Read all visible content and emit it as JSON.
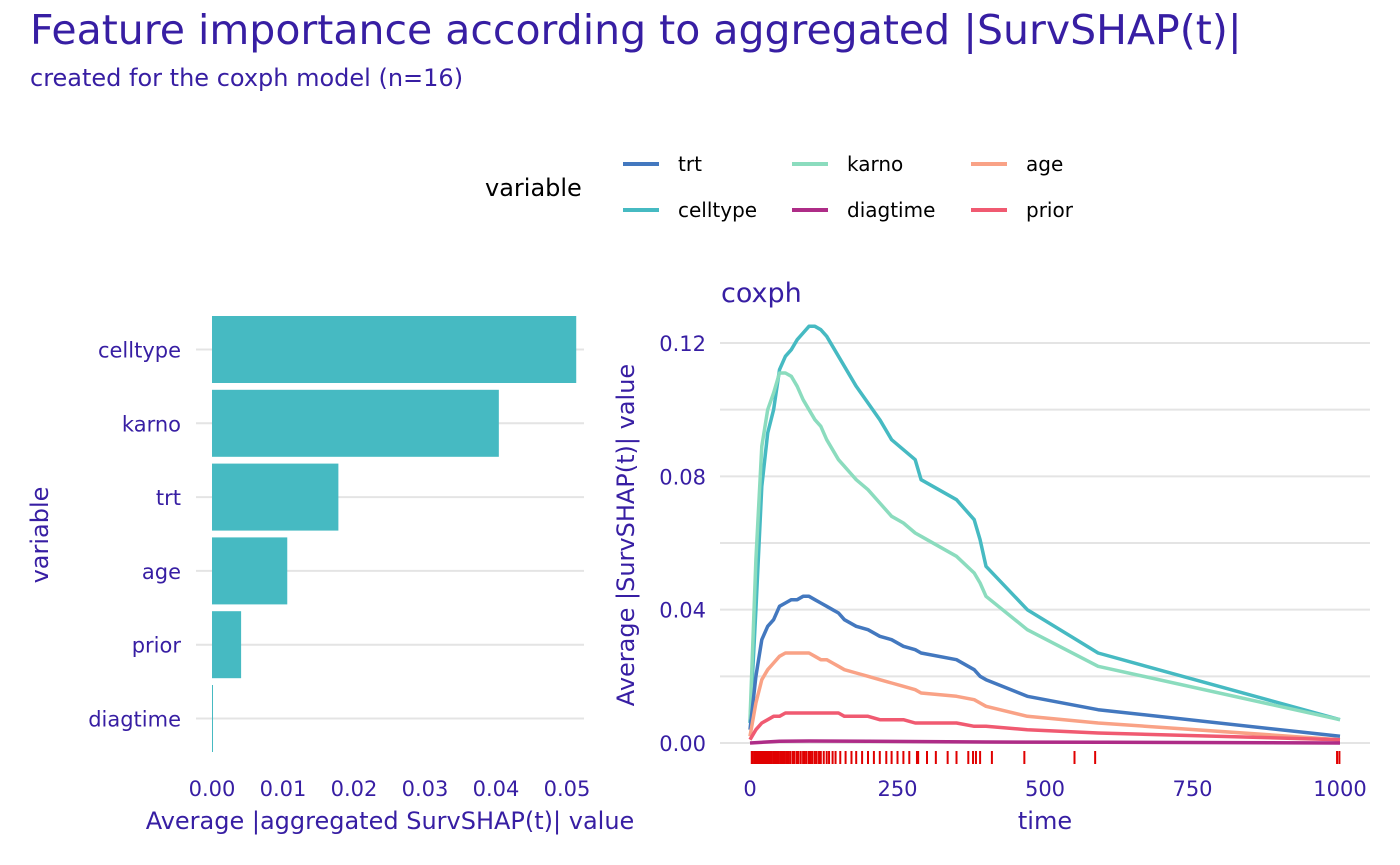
{
  "title": "Feature importance according to aggregated |SurvSHAP(t)|",
  "subtitle": "created for the coxph model (n=16)",
  "legend": {
    "title": "variable",
    "placement": "top",
    "entries": [
      {
        "label": "trt",
        "color": "#4378bf"
      },
      {
        "label": "celltype",
        "color": "#46bac2"
      },
      {
        "label": "karno",
        "color": "#8bdcbe"
      },
      {
        "label": "diagtime",
        "color": "#ae2c87"
      },
      {
        "label": "age",
        "color": "#f9a286"
      },
      {
        "label": "prior",
        "color": "#f05a71"
      }
    ]
  },
  "chart_data": [
    {
      "type": "bar",
      "orientation": "horizontal",
      "xlabel": "Average |aggregated SurvSHAP(t)| value",
      "ylabel": "variable",
      "xlim": [
        0,
        0.05
      ],
      "xticks": [
        "0.00",
        "0.01",
        "0.02",
        "0.03",
        "0.04",
        "0.05"
      ],
      "bar_color": "#46bac2",
      "categories": [
        "celltype",
        "karno",
        "trt",
        "age",
        "prior",
        "diagtime"
      ],
      "values": [
        0.0513,
        0.0404,
        0.0178,
        0.0106,
        0.0041,
        0.0001
      ]
    },
    {
      "type": "line",
      "title": "coxph",
      "xlabel": "time",
      "ylabel": "Average |SurvSHAP(t)| value",
      "xlim": [
        0,
        1000
      ],
      "ylim": [
        0,
        0.12
      ],
      "xticks": [
        "0",
        "250",
        "500",
        "750",
        "1000"
      ],
      "yticks": [
        "0.00",
        "0.04",
        "0.08",
        "0.12"
      ],
      "grid": true,
      "series": [
        {
          "name": "celltype",
          "color": "#46bac2",
          "x": [
            0,
            10,
            20,
            30,
            40,
            50,
            60,
            70,
            80,
            90,
            100,
            110,
            120,
            130,
            140,
            150,
            160,
            170,
            180,
            200,
            220,
            240,
            260,
            280,
            290,
            350,
            380,
            390,
            400,
            470,
            590,
            1000
          ],
          "y": [
            0.006,
            0.04,
            0.077,
            0.093,
            0.1,
            0.112,
            0.116,
            0.118,
            0.121,
            0.123,
            0.125,
            0.125,
            0.124,
            0.122,
            0.119,
            0.116,
            0.113,
            0.11,
            0.107,
            0.102,
            0.097,
            0.091,
            0.088,
            0.085,
            0.079,
            0.073,
            0.067,
            0.061,
            0.053,
            0.04,
            0.027,
            0.007
          ]
        },
        {
          "name": "karno",
          "color": "#8bdcbe",
          "x": [
            0,
            10,
            20,
            30,
            40,
            50,
            60,
            70,
            80,
            90,
            100,
            110,
            120,
            130,
            140,
            150,
            160,
            170,
            180,
            200,
            220,
            240,
            260,
            280,
            290,
            350,
            380,
            390,
            400,
            470,
            590,
            1000
          ],
          "y": [
            0.007,
            0.055,
            0.089,
            0.1,
            0.105,
            0.111,
            0.111,
            0.11,
            0.107,
            0.103,
            0.1,
            0.097,
            0.095,
            0.091,
            0.088,
            0.085,
            0.083,
            0.081,
            0.079,
            0.076,
            0.072,
            0.068,
            0.066,
            0.063,
            0.062,
            0.056,
            0.051,
            0.048,
            0.044,
            0.034,
            0.023,
            0.007
          ]
        },
        {
          "name": "trt",
          "color": "#4378bf",
          "x": [
            0,
            10,
            20,
            30,
            40,
            50,
            60,
            70,
            80,
            90,
            100,
            110,
            120,
            130,
            140,
            150,
            160,
            180,
            200,
            220,
            240,
            260,
            280,
            290,
            350,
            380,
            390,
            400,
            470,
            590,
            1000
          ],
          "y": [
            0.004,
            0.02,
            0.031,
            0.035,
            0.037,
            0.041,
            0.042,
            0.043,
            0.043,
            0.044,
            0.044,
            0.043,
            0.042,
            0.041,
            0.04,
            0.039,
            0.037,
            0.035,
            0.034,
            0.032,
            0.031,
            0.029,
            0.028,
            0.027,
            0.025,
            0.022,
            0.02,
            0.019,
            0.014,
            0.01,
            0.002
          ]
        },
        {
          "name": "age",
          "color": "#f9a286",
          "x": [
            0,
            10,
            20,
            30,
            40,
            50,
            60,
            70,
            80,
            90,
            100,
            110,
            120,
            130,
            140,
            150,
            160,
            180,
            200,
            220,
            240,
            260,
            280,
            290,
            350,
            380,
            390,
            400,
            470,
            590,
            1000
          ],
          "y": [
            0.002,
            0.012,
            0.019,
            0.022,
            0.024,
            0.026,
            0.027,
            0.027,
            0.027,
            0.027,
            0.027,
            0.026,
            0.025,
            0.025,
            0.024,
            0.023,
            0.022,
            0.021,
            0.02,
            0.019,
            0.018,
            0.017,
            0.016,
            0.015,
            0.014,
            0.013,
            0.012,
            0.011,
            0.008,
            0.006,
            0.001
          ]
        },
        {
          "name": "prior",
          "color": "#f05a71",
          "x": [
            0,
            10,
            20,
            30,
            40,
            50,
            60,
            70,
            80,
            90,
            100,
            110,
            120,
            130,
            140,
            150,
            160,
            180,
            200,
            220,
            240,
            260,
            280,
            290,
            350,
            380,
            390,
            400,
            470,
            590,
            1000
          ],
          "y": [
            0.001,
            0.004,
            0.006,
            0.007,
            0.008,
            0.008,
            0.009,
            0.009,
            0.009,
            0.009,
            0.009,
            0.009,
            0.009,
            0.009,
            0.009,
            0.009,
            0.008,
            0.008,
            0.008,
            0.007,
            0.007,
            0.007,
            0.006,
            0.006,
            0.006,
            0.005,
            0.005,
            0.005,
            0.004,
            0.003,
            0.001
          ]
        },
        {
          "name": "diagtime",
          "color": "#ae2c87",
          "x": [
            0,
            50,
            100,
            200,
            400,
            600,
            1000
          ],
          "y": [
            0.0,
            0.0005,
            0.0006,
            0.0005,
            0.0003,
            0.0002,
            0.0
          ]
        }
      ],
      "rug": {
        "color": "#e00000",
        "x": [
          3,
          5,
          8,
          10,
          12,
          14,
          16,
          18,
          20,
          22,
          24,
          26,
          28,
          30,
          33,
          35,
          37,
          40,
          42,
          44,
          46,
          49,
          52,
          54,
          56,
          59,
          62,
          65,
          68,
          72,
          75,
          79,
          82,
          86,
          90,
          93,
          96,
          100,
          103,
          106,
          110,
          113,
          117,
          120,
          125,
          130,
          134,
          140,
          145,
          153,
          162,
          172,
          180,
          190,
          200,
          210,
          220,
          231,
          240,
          250,
          260,
          270,
          283,
          285,
          300,
          315,
          335,
          350,
          370,
          378,
          383,
          390,
          410,
          465,
          550,
          585,
          995,
          999
        ]
      }
    }
  ]
}
